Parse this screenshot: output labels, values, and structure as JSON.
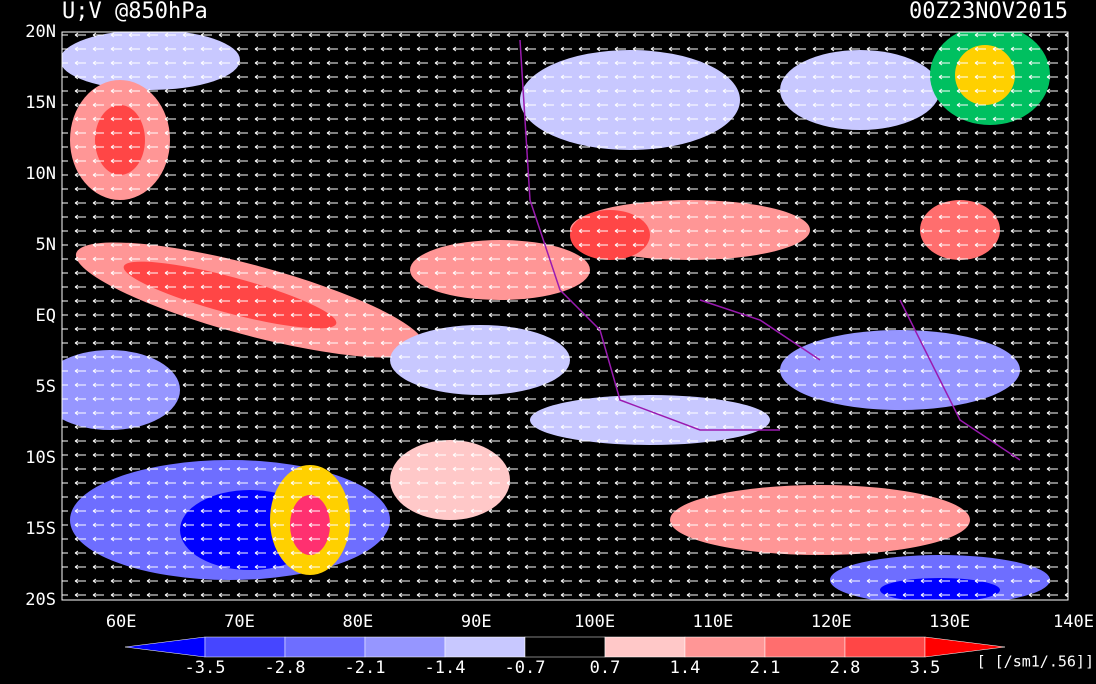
{
  "header": {
    "title": "U;V @850hPa",
    "timestamp": "00Z23NOV2015"
  },
  "lat_labels": [
    "20N",
    "15N",
    "10N",
    "5N",
    "EQ",
    "5S",
    "10S",
    "15S",
    "20S"
  ],
  "lon_labels": [
    "60E",
    "70E",
    "80E",
    "90E",
    "100E",
    "110E",
    "120E",
    "130E",
    "140E"
  ],
  "colorbar": {
    "levels": [
      -3.5,
      -2.8,
      -2.1,
      -1.4,
      -0.7,
      0.7,
      1.4,
      2.1,
      2.8,
      3.5
    ],
    "colors": [
      "#0000ff",
      "#4646ff",
      "#6e6eff",
      "#9696ff",
      "#c8c8ff",
      "#000000",
      "#ffc8c8",
      "#ff9696",
      "#ff6e6e",
      "#ff4646",
      "#ff0000"
    ],
    "unit": "[ [/sm1/.56]]"
  }
}
